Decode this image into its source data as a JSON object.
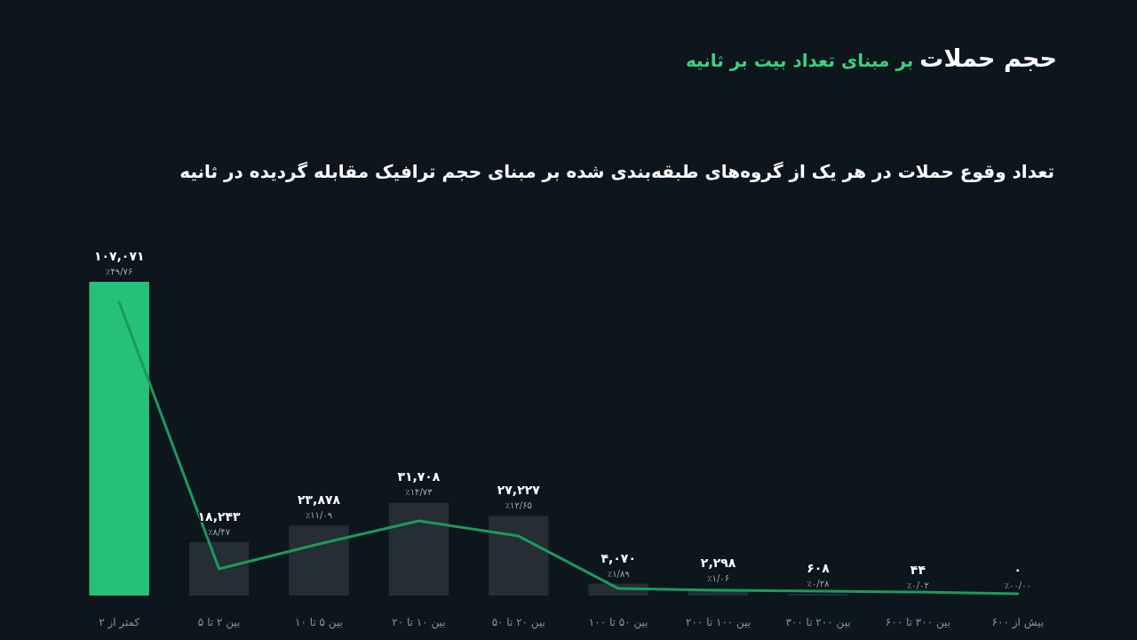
{
  "chart_data": {
    "type": "bar",
    "title": "حجم حملات",
    "subtitle": "بر مبنای تعداد بیت بر ثانیه",
    "categories": [
      "کمتر از ۲",
      "بین ۲ تا ۵",
      "بین ۵ تا ۱۰",
      "بین ۱۰ تا ۲۰",
      "بین ۲۰ تا ۵۰",
      "بین ۵۰ تا ۱۰۰",
      "بین ۱۰۰ تا ۲۰۰",
      "بین ۲۰۰ تا ۳۰۰",
      "بین ۳۰۰ تا ۶۰۰",
      "بیش از ۶۰۰"
    ],
    "series": [
      {
        "colors": [
          "#26c178",
          "#272d34",
          "#272d34",
          "#272d34",
          "#272d34",
          "#272d34",
          "#272d34",
          "#272d34",
          "#272d34",
          "#272d34"
        ],
        "values": [
          107071,
          18243,
          23878,
          31708,
          27227,
          4070,
          2298,
          608,
          44,
          0
        ],
        "value_labels": [
          "۱۰۷,۰۷۱",
          "۱۸,۲۴۳",
          "۲۳,۸۷۸",
          "۳۱,۷۰۸",
          "۲۷,۲۲۷",
          "۴,۰۷۰",
          "۲,۲۹۸",
          "۶۰۸",
          "۴۴",
          "۰"
        ]
      },
      {
        "type": "line",
        "color": "#1a9b5c",
        "values": [
          100100,
          9100,
          17600,
          25500,
          20300,
          2400,
          1800,
          1500,
          1200,
          600
        ]
      }
    ],
    "annotations": [
      "تعداد وقوع حملات در هر یک از گروه‌های طبقه‌بندی شده بر مبنای حجم ترافیک مقابله گردیده در ثانیه",
      {
        "text": "٪۴۹/۷۶",
        "x": "کمتر از ۲",
        "y": 107071
      },
      {
        "text": "٪۸/۴۷",
        "x": "بین ۲ تا ۵",
        "y": 18243
      },
      {
        "text": "٪۱۱/۰۹",
        "x": "بین ۵ تا ۱۰",
        "y": 23878
      },
      {
        "text": "٪۱۴/۷۳",
        "x": "بین ۱۰ تا ۲۰",
        "y": 31708
      },
      {
        "text": "٪۱۲/۶۵",
        "x": "بین ۲۰ تا ۵۰",
        "y": 27227
      },
      {
        "text": "٪۱/۸۹",
        "x": "بین ۵۰ تا ۱۰۰",
        "y": 4070
      },
      {
        "text": "٪۱/۰۶",
        "x": "بین ۱۰۰ تا ۲۰۰",
        "y": 2298
      },
      {
        "text": "٪۰/۲۸",
        "x": "بین ۲۰۰ تا ۳۰۰",
        "y": 608
      },
      {
        "text": "٪۰/۰۲",
        "x": "بین ۳۰۰ تا ۶۰۰",
        "y": 44
      },
      {
        "text": "٪۰۰/۰۰",
        "x": "بیش از ۶۰۰",
        "y": 0
      }
    ]
  }
}
